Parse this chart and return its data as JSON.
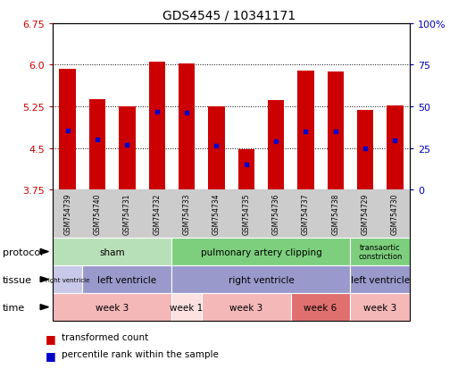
{
  "title": "GDS4545 / 10341171",
  "samples": [
    "GSM754739",
    "GSM754740",
    "GSM754731",
    "GSM754732",
    "GSM754733",
    "GSM754734",
    "GSM754735",
    "GSM754736",
    "GSM754737",
    "GSM754738",
    "GSM754729",
    "GSM754730"
  ],
  "bar_tops": [
    5.92,
    5.38,
    5.25,
    6.05,
    6.02,
    5.25,
    4.48,
    5.37,
    5.9,
    5.88,
    5.18,
    5.26
  ],
  "bar_bottoms": [
    3.75,
    3.75,
    3.75,
    3.75,
    3.75,
    3.75,
    3.75,
    3.75,
    3.75,
    3.75,
    3.75,
    3.75
  ],
  "blue_dot_y": [
    4.82,
    4.65,
    4.56,
    5.15,
    5.14,
    4.55,
    4.2,
    4.63,
    4.8,
    4.8,
    4.5,
    4.64
  ],
  "ylim": [
    3.75,
    6.75
  ],
  "yticks_left": [
    3.75,
    4.5,
    5.25,
    6.0,
    6.75
  ],
  "yticks_right": [
    0,
    25,
    50,
    75,
    100
  ],
  "bar_color": "#cc0000",
  "blue_dot_color": "#0000cc",
  "bar_width": 0.55,
  "protocol_row": {
    "groups": [
      {
        "label": "sham",
        "start": 0,
        "end": 4,
        "color": "#b8e0b8"
      },
      {
        "label": "pulmonary artery clipping",
        "start": 4,
        "end": 10,
        "color": "#7dcf7d"
      },
      {
        "label": "transaortic\nconstriction",
        "start": 10,
        "end": 12,
        "color": "#7dcf7d"
      }
    ]
  },
  "tissue_row": {
    "groups": [
      {
        "label": "right ventricle",
        "start": 0,
        "end": 1,
        "color": "#c8c8e8"
      },
      {
        "label": "left ventricle",
        "start": 1,
        "end": 4,
        "color": "#9999cc"
      },
      {
        "label": "right ventricle",
        "start": 4,
        "end": 10,
        "color": "#9999cc"
      },
      {
        "label": "left ventricle",
        "start": 10,
        "end": 12,
        "color": "#9999cc"
      }
    ]
  },
  "time_row": {
    "groups": [
      {
        "label": "week 3",
        "start": 0,
        "end": 4,
        "color": "#f4b8b8"
      },
      {
        "label": "week 1",
        "start": 4,
        "end": 5,
        "color": "#fde0e0"
      },
      {
        "label": "week 3",
        "start": 5,
        "end": 8,
        "color": "#f4b8b8"
      },
      {
        "label": "week 6",
        "start": 8,
        "end": 10,
        "color": "#e07070"
      },
      {
        "label": "week 3",
        "start": 10,
        "end": 12,
        "color": "#f4b8b8"
      }
    ]
  },
  "legend_items": [
    {
      "color": "#cc0000",
      "label": "transformed count"
    },
    {
      "color": "#0000cc",
      "label": "percentile rank within the sample"
    }
  ],
  "tick_label_color_left": "#cc0000",
  "tick_label_color_right": "#0000bb",
  "bg_color": "#ffffff",
  "sample_bg_color": "#cccccc"
}
